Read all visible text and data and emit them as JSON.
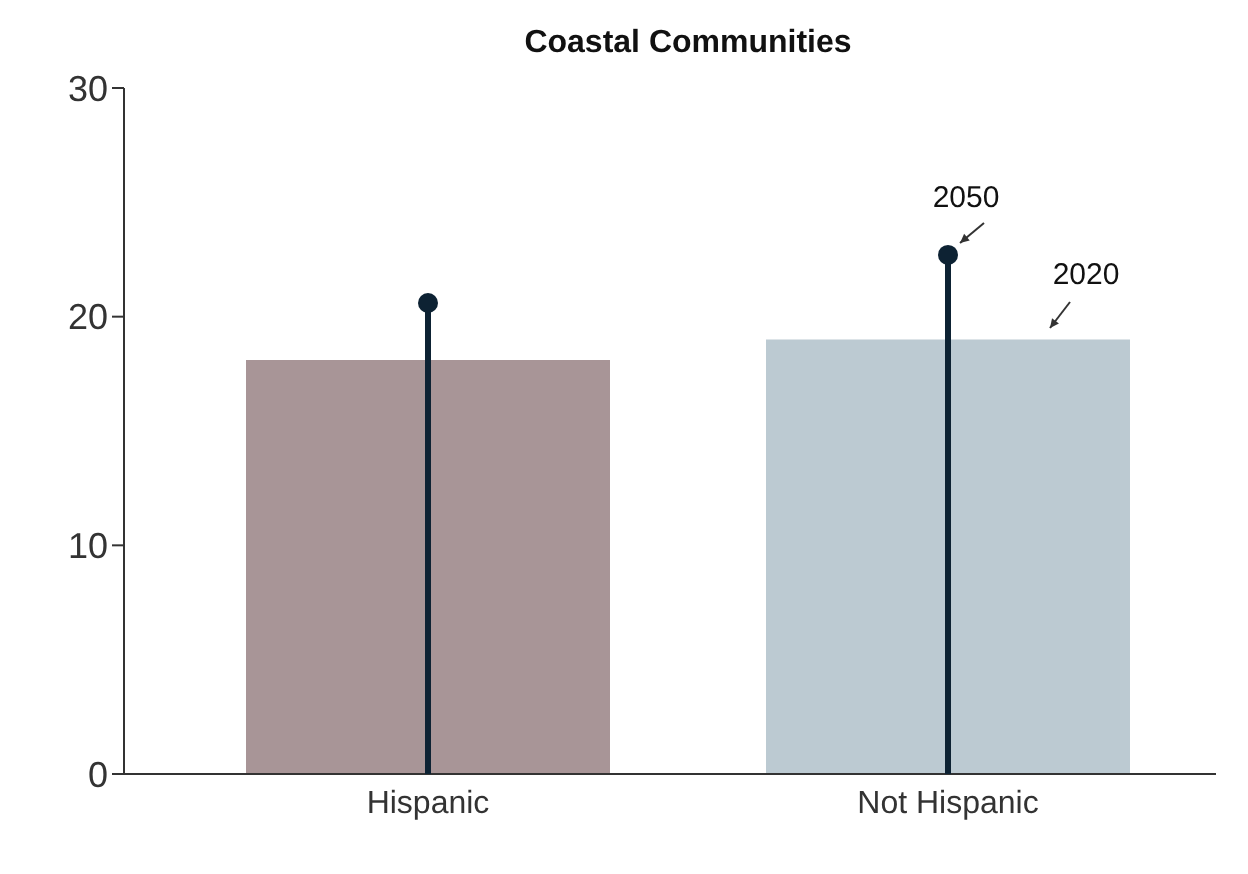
{
  "chart_data": {
    "type": "bar",
    "title": "Coastal Communities",
    "categories": [
      "Hispanic",
      "Not Hispanic"
    ],
    "series": [
      {
        "colors": [
          "#a89597",
          "#bccad2"
        ],
        "values": [
          18.1,
          19.0
        ]
      },
      {
        "type": "lollipop",
        "color": "#0d2233",
        "values": [
          20.6,
          22.7
        ]
      }
    ],
    "ylim": [
      0,
      30
    ],
    "yticks": [
      0,
      10,
      20,
      30
    ],
    "marker": "circle",
    "annotations": [
      {
        "text": "2050",
        "x": "Not Hispanic",
        "y": 22.7
      },
      "2020"
    ]
  }
}
